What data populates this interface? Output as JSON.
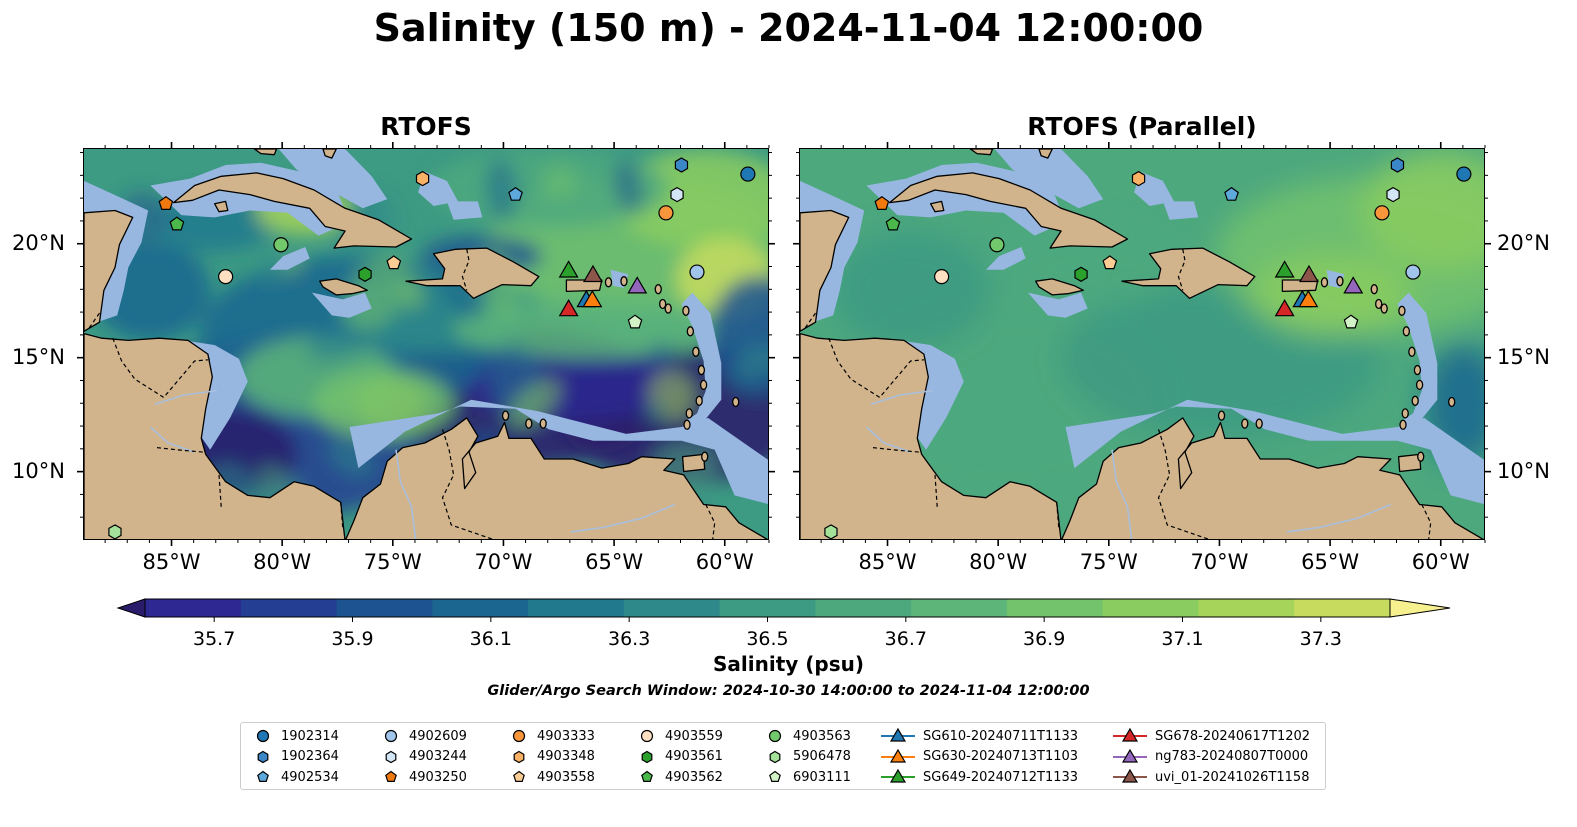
{
  "title": "Salinity (150 m) - 2024-11-04 12:00:00",
  "panels": [
    {
      "title": "RTOFS",
      "style": "eddy"
    },
    {
      "title": "RTOFS (Parallel)",
      "style": "smooth"
    }
  ],
  "axes": {
    "lon_range": [
      -89,
      -58
    ],
    "lat_range": [
      7,
      24.2
    ],
    "x_ticks": [
      {
        "value": -85,
        "label": "85°W"
      },
      {
        "value": -80,
        "label": "80°W"
      },
      {
        "value": -75,
        "label": "75°W"
      },
      {
        "value": -70,
        "label": "70°W"
      },
      {
        "value": -65,
        "label": "65°W"
      },
      {
        "value": -60,
        "label": "60°W"
      }
    ],
    "y_ticks": [
      {
        "value": 20,
        "label": "20°N"
      },
      {
        "value": 15,
        "label": "15°N"
      },
      {
        "value": 10,
        "label": "10°N"
      }
    ]
  },
  "colorbar": {
    "label": "Salinity (psu)",
    "min": 35.6,
    "max": 37.4,
    "extend": "both",
    "colors": [
      "#2a1b6b",
      "#2d2892",
      "#233e92",
      "#1d5391",
      "#1b6690",
      "#21798e",
      "#2e8a8a",
      "#3d9a83",
      "#4da87e",
      "#5db57a",
      "#73c26c",
      "#8bcc60",
      "#a6d45a",
      "#c7dc5e",
      "#f6f08f"
    ],
    "ticks": [
      {
        "value": 35.7,
        "label": "35.7"
      },
      {
        "value": 35.9,
        "label": "35.9"
      },
      {
        "value": 36.1,
        "label": "36.1"
      },
      {
        "value": 36.3,
        "label": "36.3"
      },
      {
        "value": 36.5,
        "label": "36.5"
      },
      {
        "value": 36.7,
        "label": "36.7"
      },
      {
        "value": 36.9,
        "label": "36.9"
      },
      {
        "value": 37.1,
        "label": "37.1"
      },
      {
        "value": 37.3,
        "label": "37.3"
      }
    ]
  },
  "search_window": "Glider/Argo Search Window: 2024-10-30 14:00:00 to 2024-11-04 12:00:00",
  "colors": {
    "land": "#d1b48c",
    "shallow": "#97b7e1",
    "deep": "#2a1b6b",
    "river": "#a9bfdc"
  },
  "argo_floats": [
    {
      "id": "1902314",
      "marker": "circle",
      "color": "#1f77b4",
      "lon": -59.0,
      "lat": 23.1
    },
    {
      "id": "1902364",
      "marker": "hexagon",
      "color": "#3a86c6",
      "lon": -62.0,
      "lat": 23.5
    },
    {
      "id": "4902534",
      "marker": "pentagon",
      "color": "#5ea9dc",
      "lon": -69.5,
      "lat": 22.2
    },
    {
      "id": "4902609",
      "marker": "circle",
      "color": "#a0c4ea",
      "lon": -61.3,
      "lat": 18.8
    },
    {
      "id": "4903244",
      "marker": "hexagon",
      "color": "#d3e6f6",
      "lon": -62.2,
      "lat": 22.2
    },
    {
      "id": "4903250",
      "marker": "pentagon",
      "color": "#f07a10",
      "lon": -85.3,
      "lat": 21.8
    },
    {
      "id": "4903333",
      "marker": "circle",
      "color": "#f7963a",
      "lon": -62.7,
      "lat": 21.4
    },
    {
      "id": "4903348",
      "marker": "hexagon",
      "color": "#f8b165",
      "lon": -73.7,
      "lat": 22.9
    },
    {
      "id": "4903558",
      "marker": "pentagon",
      "color": "#fbcd95",
      "lon": -75.0,
      "lat": 19.2
    },
    {
      "id": "4903559",
      "marker": "circle",
      "color": "#fde0c2",
      "lon": -82.6,
      "lat": 18.6
    },
    {
      "id": "4903561",
      "marker": "hexagon",
      "color": "#2ca02c",
      "lon": -76.3,
      "lat": 18.7
    },
    {
      "id": "4903562",
      "marker": "pentagon",
      "color": "#4ab84a",
      "lon": -84.8,
      "lat": 20.9
    },
    {
      "id": "4903563",
      "marker": "circle",
      "color": "#72c86a",
      "lon": -80.1,
      "lat": 20.0
    },
    {
      "id": "5906478",
      "marker": "hexagon",
      "color": "#a4e29a",
      "lon": -87.6,
      "lat": 7.4
    },
    {
      "id": "6903111",
      "marker": "pentagon",
      "color": "#d3f2c7",
      "lon": -64.1,
      "lat": 16.6
    }
  ],
  "gliders": [
    {
      "id": "SG610-20240711T1133",
      "color": "#1f77b4",
      "lon": -66.3,
      "lat": 17.6
    },
    {
      "id": "SG630-20240713T1103",
      "color": "#ff7f0e",
      "lon": -66.3,
      "lat": 17.6
    },
    {
      "id": "SG649-20240712T1133",
      "color": "#2ca02c",
      "lon": -67.1,
      "lat": 18.9
    },
    {
      "id": "SG678-20240617T1202",
      "color": "#d62728",
      "lon": -67.1,
      "lat": 17.2
    },
    {
      "id": "ng783-20240807T0000",
      "color": "#9467bd",
      "lon": -64.0,
      "lat": 18.2
    },
    {
      "id": "uvi_01-20241026T1158",
      "color": "#8c564b",
      "lon": -66.0,
      "lat": 18.7
    }
  ]
}
